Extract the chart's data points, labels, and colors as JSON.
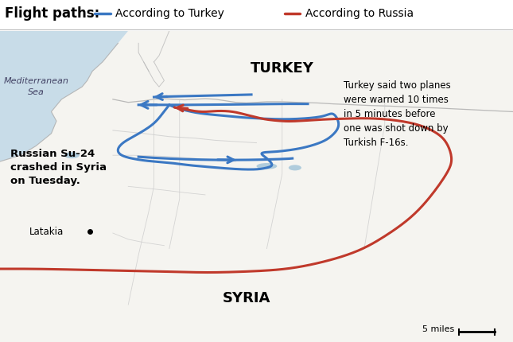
{
  "title_text": "Flight paths:",
  "legend_turkey_label": "According to Turkey",
  "legend_russia_label": "According to Russia",
  "turkey_color": "#3B78C3",
  "russia_color": "#C0392B",
  "background_color": "#FFFFFF",
  "land_color": "#F5F4F0",
  "sea_color": "#C8DCE8",
  "border_color": "#AAAAAA",
  "internal_line_color": "#CCCCCC",
  "annotation1": "Turkey said two planes\nwere warned 10 times\nin 5 minutes before\none was shot down by\nTurkish F-16s.",
  "annotation2": "Russian Su-24\ncrashed in Syria\non Tuesday.",
  "label_turkey": "TURKEY",
  "label_syria": "SYRIA",
  "label_med": "Mediterranean\nSea",
  "label_latakia": "Latakia",
  "label_scale": "5 miles",
  "figsize": [
    6.45,
    4.3
  ],
  "dpi": 100
}
